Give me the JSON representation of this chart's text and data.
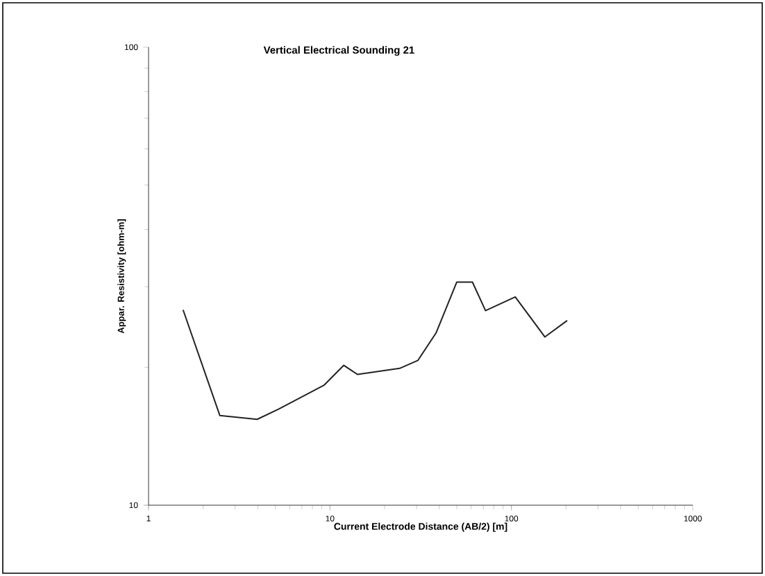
{
  "chart_data": {
    "type": "line",
    "title": "Vertical Electrical Sounding 21",
    "xlabel": "Current Electrode Distance (AB/2) [m]",
    "ylabel": "Appar. Resistivity [ohm-m]",
    "log": "xy",
    "xlim": [
      1,
      1000
    ],
    "ylim": [
      10,
      100
    ],
    "xticks": [
      1,
      10,
      100,
      1000
    ],
    "yticks": [
      10,
      100
    ],
    "grid": false,
    "legend": false,
    "marker": "none",
    "line_style": "solid",
    "series": [
      {
        "color": "#222222",
        "x": [
          1.55,
          2.47,
          3.97,
          5.2,
          9.3,
          11.9,
          14.2,
          24.2,
          30.5,
          38.5,
          50,
          61,
          72,
          105,
          153,
          203
        ],
        "values": [
          26.7,
          15.7,
          15.4,
          16.2,
          18.3,
          20.2,
          19.3,
          19.9,
          20.7,
          23.8,
          30.7,
          30.7,
          26.6,
          28.5,
          23.3,
          25.3
        ]
      }
    ]
  }
}
